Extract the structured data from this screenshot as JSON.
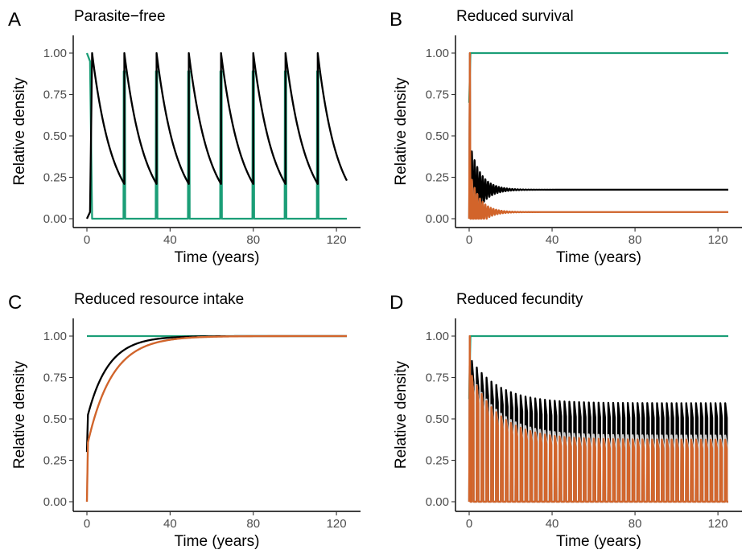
{
  "colors": {
    "black": "#000000",
    "green": "#1b9e77",
    "orange": "#d2642a",
    "grey": "#c8c8c8"
  },
  "chart_data": [
    {
      "letter": "A",
      "title": "Parasite−free",
      "type": "line",
      "xlabel": "Time (years)",
      "ylabel": "Relative density",
      "xlim": [
        0,
        125
      ],
      "ylim": [
        0,
        1
      ],
      "xticks": [
        0,
        40,
        80,
        120
      ],
      "yticks": [
        0.0,
        0.25,
        0.5,
        0.75,
        1.0
      ],
      "xtick_labels": [
        "0",
        "40",
        "80",
        "120"
      ],
      "ytick_labels": [
        "0.00",
        "0.25",
        "0.50",
        "0.75",
        "1.00"
      ],
      "grid": false,
      "series": [
        {
          "color": "green",
          "kind": "pulses",
          "initial": 1.0,
          "decay_end": 2.5,
          "pulse_times": [
            18,
            33.5,
            49,
            64.5,
            80,
            95.5,
            111
          ],
          "pulse_height": 0.89
        },
        {
          "color": "black",
          "kind": "sawtooth",
          "start": 0.0,
          "peak_times": [
            2.5,
            18,
            33.5,
            49,
            64.5,
            80,
            95.5,
            111
          ],
          "peak": 1.0,
          "trough": 0.21,
          "end": [
            125,
            0.23
          ]
        }
      ]
    },
    {
      "letter": "B",
      "title": "Reduced survival",
      "type": "line",
      "xlabel": "Time (years)",
      "ylabel": "Relative density",
      "xlim": [
        0,
        125
      ],
      "ylim": [
        0,
        1
      ],
      "xticks": [
        0,
        40,
        80,
        120
      ],
      "yticks": [
        0.0,
        0.25,
        0.5,
        0.75,
        1.0
      ],
      "xtick_labels": [
        "0",
        "40",
        "80",
        "120"
      ],
      "ytick_labels": [
        "0.00",
        "0.25",
        "0.50",
        "0.75",
        "1.00"
      ],
      "grid": false,
      "series": [
        {
          "color": "green",
          "kind": "step",
          "start": 0.7,
          "level": 1.0
        },
        {
          "color": "black",
          "kind": "damped",
          "start": 1.0,
          "equilibrium": 0.175,
          "amplitude": 0.3,
          "period": 1.3,
          "decay": 5
        },
        {
          "color": "grey",
          "kind": "damped",
          "start": 1.0,
          "equilibrium": 0.04,
          "amplitude": 0.26,
          "period": 1.3,
          "decay": 4.5
        },
        {
          "color": "orange",
          "kind": "damped",
          "start": 1.0,
          "equilibrium": 0.04,
          "amplitude": 0.26,
          "period": 1.3,
          "decay": 4.5
        }
      ]
    },
    {
      "letter": "C",
      "title": "Reduced resource intake",
      "type": "line",
      "xlabel": "Time (years)",
      "ylabel": "Relative density",
      "xlim": [
        0,
        125
      ],
      "ylim": [
        0,
        1
      ],
      "xticks": [
        0,
        40,
        80,
        120
      ],
      "yticks": [
        0.0,
        0.25,
        0.5,
        0.75,
        1.0
      ],
      "xtick_labels": [
        "0",
        "40",
        "80",
        "120"
      ],
      "ytick_labels": [
        "0.00",
        "0.25",
        "0.50",
        "0.75",
        "1.00"
      ],
      "grid": false,
      "series": [
        {
          "color": "green",
          "kind": "flat",
          "level": 1.0
        },
        {
          "color": "black",
          "kind": "saturate",
          "start": 0.3,
          "jump": 0.5,
          "rate": 0.1
        },
        {
          "color": "grey",
          "kind": "saturate",
          "start": 0.0,
          "jump": 0.33,
          "rate": 0.085
        },
        {
          "color": "orange",
          "kind": "saturate",
          "start": 0.0,
          "jump": 0.33,
          "rate": 0.085
        }
      ]
    },
    {
      "letter": "D",
      "title": "Reduced fecundity",
      "type": "line",
      "xlabel": "Time (years)",
      "ylabel": "Relative density",
      "xlim": [
        0,
        125
      ],
      "ylim": [
        0,
        1
      ],
      "xticks": [
        0,
        40,
        80,
        120
      ],
      "yticks": [
        0.0,
        0.25,
        0.5,
        0.75,
        1.0
      ],
      "xtick_labels": [
        "0",
        "40",
        "80",
        "120"
      ],
      "ytick_labels": [
        "0.00",
        "0.25",
        "0.50",
        "0.75",
        "1.00"
      ],
      "grid": false,
      "series": [
        {
          "color": "green",
          "kind": "step",
          "start": 0.62,
          "level": 1.0
        },
        {
          "color": "black",
          "kind": "spikes",
          "period": 2.35,
          "first": 0.85,
          "final": 0.595,
          "decay": 14
        },
        {
          "color": "grey",
          "kind": "spikes",
          "period": 2.35,
          "first": 0.76,
          "final": 0.4,
          "decay": 14
        },
        {
          "color": "orange",
          "kind": "spikes",
          "period": 2.35,
          "first": 0.76,
          "final": 0.375,
          "decay": 14
        }
      ]
    }
  ]
}
